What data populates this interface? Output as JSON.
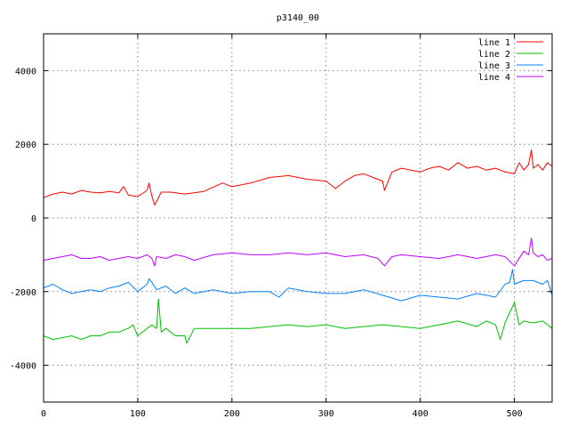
{
  "chart_data": {
    "type": "line",
    "title": "p3140_00",
    "xlabel": "",
    "ylabel": "",
    "xlim": [
      0,
      540
    ],
    "ylim": [
      -5000,
      5000
    ],
    "x_ticks": [
      0,
      100,
      200,
      300,
      400,
      500
    ],
    "y_ticks": [
      -4000,
      -2000,
      0,
      2000,
      4000
    ],
    "grid": true,
    "legend_position": "top-right",
    "series": [
      {
        "name": "line 1",
        "color": "#ff0000",
        "x": [
          0,
          10,
          20,
          30,
          40,
          50,
          60,
          70,
          80,
          85,
          90,
          100,
          110,
          112,
          115,
          118,
          125,
          135,
          150,
          170,
          190,
          200,
          220,
          240,
          260,
          280,
          300,
          310,
          320,
          330,
          340,
          350,
          360,
          362,
          370,
          380,
          390,
          400,
          410,
          420,
          430,
          440,
          450,
          460,
          470,
          480,
          490,
          500,
          505,
          510,
          515,
          518,
          520,
          525,
          530,
          535,
          540
        ],
        "y": [
          550,
          650,
          700,
          650,
          750,
          700,
          680,
          720,
          680,
          850,
          620,
          580,
          750,
          950,
          600,
          350,
          700,
          700,
          650,
          720,
          950,
          850,
          950,
          1100,
          1150,
          1050,
          1000,
          800,
          1000,
          1150,
          1200,
          1100,
          1000,
          750,
          1250,
          1350,
          1300,
          1250,
          1350,
          1400,
          1300,
          1500,
          1350,
          1400,
          1300,
          1350,
          1250,
          1200,
          1500,
          1300,
          1450,
          1850,
          1350,
          1450,
          1300,
          1500,
          1400
        ]
      },
      {
        "name": "line 2",
        "color": "#00c000",
        "x": [
          0,
          10,
          20,
          30,
          40,
          50,
          60,
          70,
          80,
          90,
          95,
          100,
          110,
          115,
          120,
          122,
          125,
          130,
          140,
          150,
          152,
          160,
          180,
          200,
          220,
          240,
          260,
          280,
          300,
          320,
          340,
          360,
          380,
          400,
          420,
          440,
          460,
          470,
          480,
          485,
          490,
          500,
          505,
          510,
          520,
          530,
          540
        ],
        "y": [
          -3200,
          -3300,
          -3250,
          -3200,
          -3300,
          -3200,
          -3200,
          -3100,
          -3100,
          -3000,
          -2900,
          -3200,
          -3000,
          -2900,
          -3000,
          -2200,
          -3100,
          -3000,
          -3200,
          -3200,
          -3400,
          -3000,
          -3000,
          -3000,
          -3000,
          -2950,
          -2900,
          -2950,
          -2900,
          -3000,
          -2950,
          -2900,
          -2950,
          -3000,
          -2900,
          -2800,
          -2950,
          -2800,
          -2900,
          -3300,
          -2850,
          -2300,
          -2900,
          -2800,
          -2850,
          -2800,
          -3000
        ]
      },
      {
        "name": "line 3",
        "color": "#0080ff",
        "x": [
          0,
          10,
          20,
          30,
          40,
          50,
          60,
          70,
          80,
          90,
          100,
          110,
          112,
          115,
          120,
          130,
          140,
          150,
          160,
          180,
          200,
          220,
          240,
          250,
          260,
          270,
          280,
          300,
          320,
          340,
          360,
          380,
          400,
          420,
          440,
          460,
          480,
          490,
          495,
          498,
          500,
          505,
          510,
          520,
          530,
          535,
          540
        ],
        "y": [
          -1900,
          -1800,
          -1950,
          -2050,
          -2000,
          -1950,
          -2000,
          -1900,
          -1850,
          -1750,
          -2000,
          -1800,
          -1650,
          -1750,
          -1950,
          -1850,
          -2050,
          -1900,
          -2050,
          -1950,
          -2050,
          -2000,
          -2000,
          -2150,
          -1900,
          -1950,
          -2000,
          -2050,
          -2050,
          -1950,
          -2100,
          -2250,
          -2100,
          -2150,
          -2200,
          -2050,
          -2150,
          -1800,
          -1750,
          -1400,
          -1800,
          -1750,
          -1700,
          -1700,
          -1800,
          -1700,
          -2100
        ]
      },
      {
        "name": "line 4",
        "color": "#c000ff",
        "x": [
          0,
          10,
          20,
          30,
          40,
          50,
          60,
          70,
          80,
          90,
          100,
          110,
          115,
          118,
          120,
          130,
          140,
          150,
          160,
          180,
          200,
          220,
          240,
          260,
          280,
          300,
          320,
          340,
          355,
          362,
          370,
          380,
          400,
          420,
          440,
          460,
          480,
          490,
          500,
          505,
          510,
          515,
          518,
          520,
          525,
          530,
          535,
          540
        ],
        "y": [
          -1150,
          -1100,
          -1050,
          -1000,
          -1100,
          -1100,
          -1050,
          -1150,
          -1100,
          -1050,
          -1100,
          -1000,
          -1100,
          -1300,
          -1050,
          -1100,
          -1000,
          -1050,
          -1150,
          -1000,
          -950,
          -1000,
          -1000,
          -950,
          -1000,
          -950,
          -1050,
          -1000,
          -1100,
          -1300,
          -1050,
          -1000,
          -1050,
          -1100,
          -1000,
          -1100,
          -1000,
          -1050,
          -1300,
          -1100,
          -900,
          -1000,
          -550,
          -950,
          -1050,
          -1000,
          -1150,
          -1100
        ]
      }
    ]
  }
}
